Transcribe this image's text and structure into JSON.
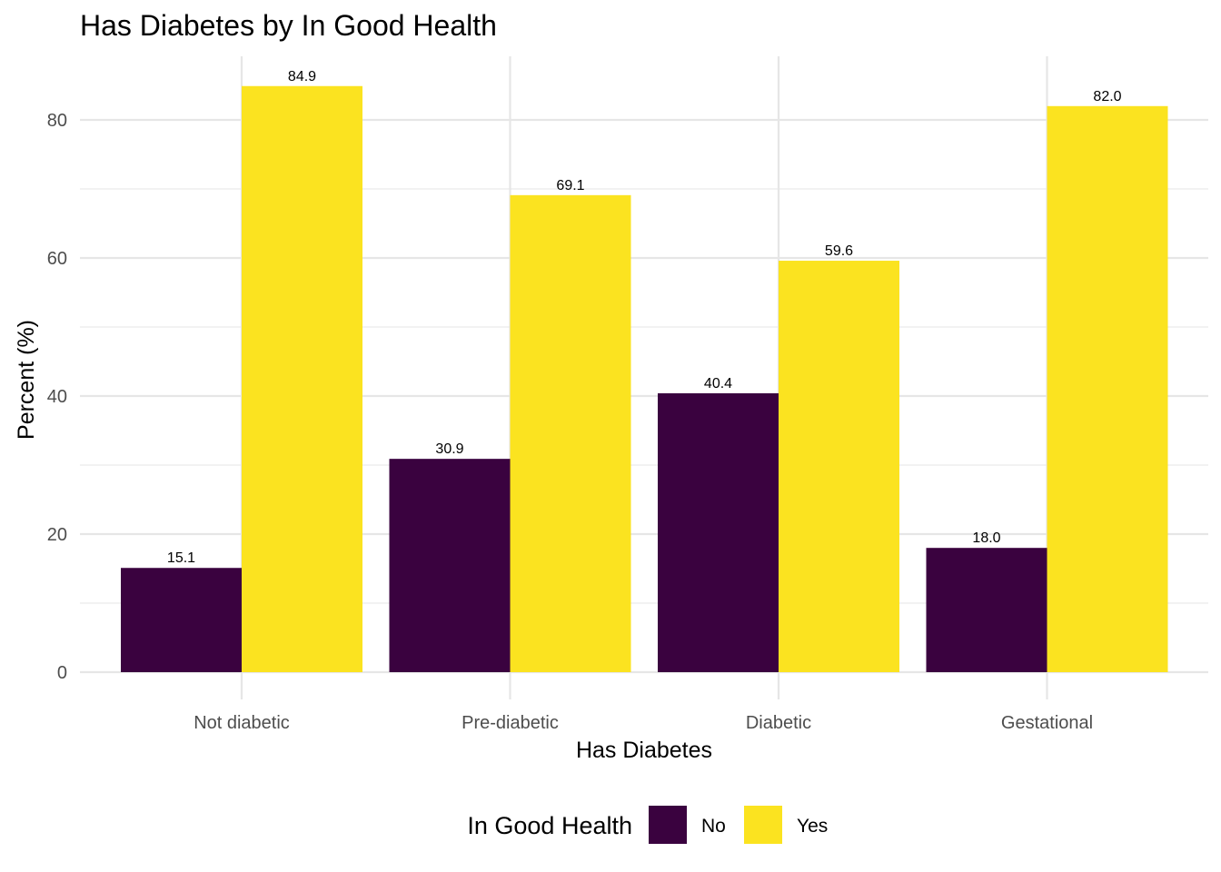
{
  "chart_data": {
    "type": "bar",
    "title": "Has Diabetes by In Good Health",
    "xlabel": "Has Diabetes",
    "ylabel": "Percent (%)",
    "categories": [
      "Not diabetic",
      "Pre-diabetic",
      "Diabetic",
      "Gestational"
    ],
    "series": [
      {
        "name": "No",
        "color": "#3a023f",
        "values": [
          15.1,
          30.9,
          40.4,
          18.0
        ],
        "labels": [
          "15.1",
          "30.9",
          "40.4",
          "18.0"
        ]
      },
      {
        "name": "Yes",
        "color": "#fbe320",
        "values": [
          84.9,
          69.1,
          59.6,
          82.0
        ],
        "labels": [
          "84.9",
          "69.1",
          "59.6",
          "82.0"
        ]
      }
    ],
    "ylim": [
      0,
      89
    ],
    "yticks": [
      0,
      20,
      40,
      60,
      80
    ],
    "ytick_labels": [
      "0",
      "20",
      "40",
      "60",
      "80"
    ],
    "grid": true,
    "legend": {
      "title": "In Good Health",
      "position": "bottom"
    }
  }
}
